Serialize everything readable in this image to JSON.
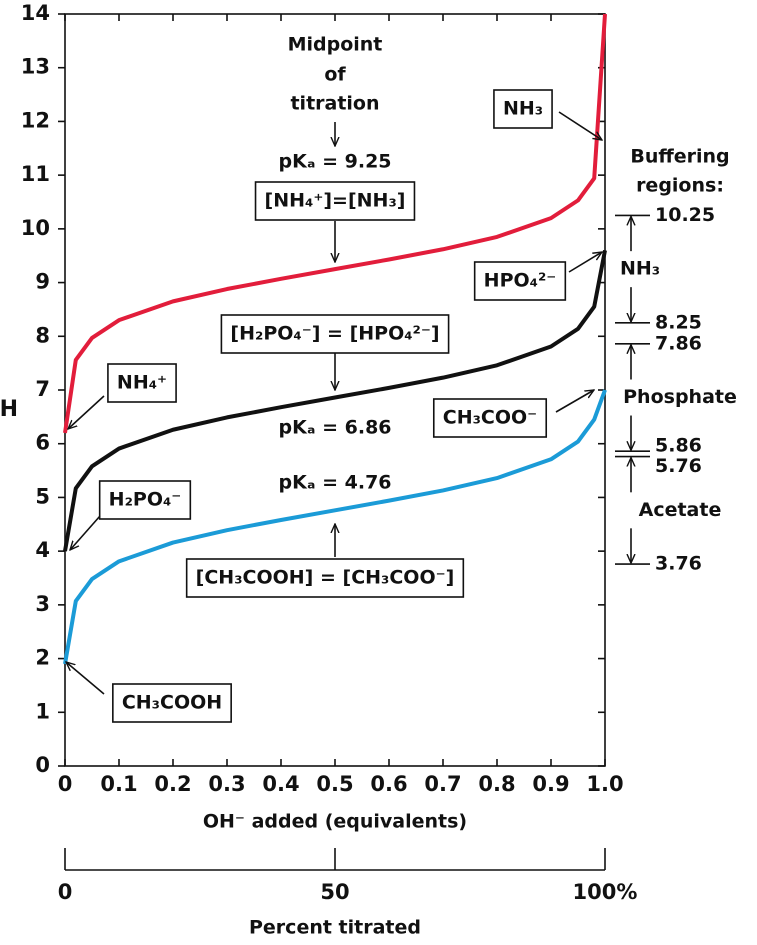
{
  "chart_data": {
    "type": "line",
    "xlabel": "OH⁻ added (equivalents)",
    "ylabel": "pH",
    "xlim": [
      0,
      1
    ],
    "ylim": [
      0,
      14
    ],
    "xticks": [
      0,
      0.1,
      0.2,
      0.3,
      0.4,
      0.5,
      0.6,
      0.7,
      0.8,
      0.9,
      {
        "value": 1,
        "label": "1.0"
      }
    ],
    "yticks": [
      0,
      1,
      2,
      3,
      4,
      5,
      6,
      7,
      8,
      9,
      10,
      11,
      12,
      13,
      14
    ],
    "x2label": "Percent titrated",
    "x2lim": [
      0,
      100
    ],
    "x2ticks": [
      0,
      50,
      {
        "value": 100,
        "label": "100%"
      }
    ],
    "x": [
      0,
      0.02,
      0.05,
      0.1,
      0.2,
      0.3,
      0.4,
      0.5,
      0.6,
      0.7,
      0.8,
      0.9,
      0.95,
      0.98,
      1.0
    ],
    "series": [
      {
        "color": "#e21d3b",
        "values": [
          6.2,
          7.56,
          7.97,
          8.3,
          8.65,
          8.88,
          9.07,
          9.25,
          9.43,
          9.62,
          9.85,
          10.2,
          10.53,
          10.94,
          14
        ]
      },
      {
        "color": "#111111",
        "values": [
          4.0,
          5.17,
          5.58,
          5.91,
          6.26,
          6.49,
          6.68,
          6.86,
          7.04,
          7.23,
          7.46,
          7.81,
          8.14,
          8.55,
          9.6
        ]
      },
      {
        "color": "#1b9bd7",
        "values": [
          1.9,
          3.07,
          3.48,
          3.81,
          4.16,
          4.39,
          4.58,
          4.76,
          4.94,
          5.13,
          5.36,
          5.71,
          6.04,
          6.45,
          7.0
        ]
      }
    ],
    "annotations": [
      "Midpoint",
      "of",
      "titration",
      "pKₐ = 9.25",
      "[NH₄⁺]=[NH₃]",
      "NH₃",
      "HPO₄²⁻",
      "[H₂PO₄⁻] = [HPO₄²⁻]",
      "pKₐ = 6.86",
      "NH₄⁺",
      "CH₃COO⁻",
      "pKₐ = 4.76",
      "H₂PO₄⁻",
      "[CH₃COOH] = [CH₃COO⁻]",
      "CH₃COOH",
      "Buffering",
      "regions:"
    ],
    "buffer_regions": [
      {
        "name": "NH₃",
        "range": [
          8.25,
          10.25
        ]
      },
      {
        "name": "Phosphate",
        "range": [
          5.86,
          7.86
        ]
      },
      {
        "name": "Acetate",
        "range": [
          3.76,
          5.76
        ]
      }
    ]
  }
}
